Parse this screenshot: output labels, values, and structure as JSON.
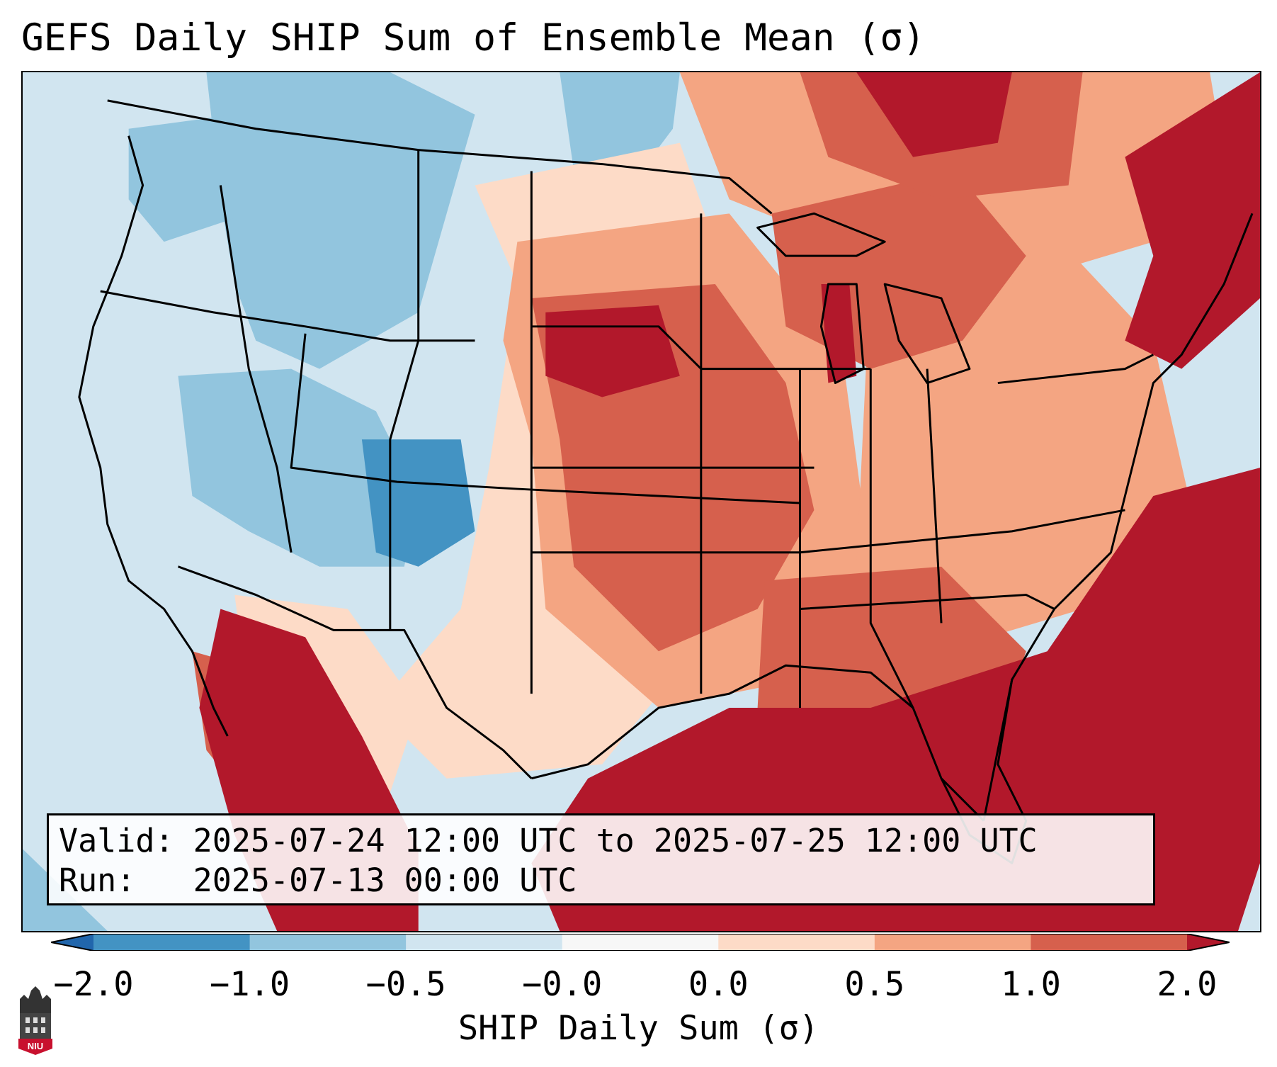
{
  "title": "GEFS Daily SHIP Sum of Ensemble Mean (σ)",
  "info": {
    "valid_label": "Valid:",
    "valid_value": "2025-07-24 12:00 UTC to 2025-07-25 12:00 UTC",
    "run_label": "Run:",
    "run_value": "2025-07-13 00:00 UTC"
  },
  "colorbar": {
    "label": "SHIP Daily Sum (σ)",
    "ticks": [
      "−2.0",
      "−1.0",
      "−0.5",
      "−0.0",
      "0.0",
      "0.5",
      "1.0",
      "2.0"
    ],
    "colors": [
      "#2166ac",
      "#4393c3",
      "#92c5de",
      "#d1e5f0",
      "#f7f7f7",
      "#fddbc7",
      "#f4a582",
      "#d6604d",
      "#b2182b"
    ],
    "extend": "both"
  },
  "logo": {
    "text": "NIU",
    "icon": "university-logo-icon"
  },
  "palette": {
    "very_negative": "#4393c3",
    "negative": "#92c5de",
    "slightly_negative": "#d1e5f0",
    "slightly_positive": "#fddbc7",
    "positive": "#f4a582",
    "more_positive": "#d6604d",
    "very_positive": "#b2182b"
  }
}
